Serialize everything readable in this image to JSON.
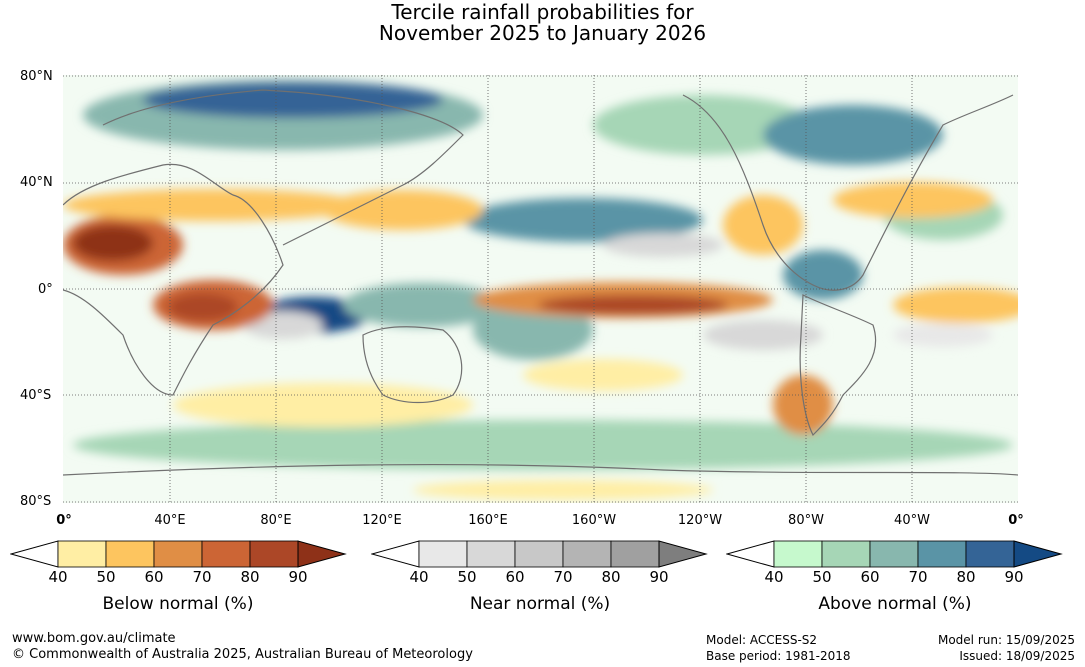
{
  "title": {
    "line1": "Tercile rainfall probabilities for",
    "line2": "November 2025 to January 2026"
  },
  "lat_labels": [
    "80°N",
    "40°N",
    "0°",
    "40°S",
    "80°S"
  ],
  "lon_labels": [
    "0°",
    "40°E",
    "80°E",
    "120°E",
    "160°E",
    "160°W",
    "120°W",
    "80°W",
    "40°W",
    "0°"
  ],
  "legends": [
    {
      "id": "below",
      "label": "Below normal (%)",
      "ticks": [
        "40",
        "50",
        "60",
        "70",
        "80",
        "90"
      ],
      "colors": [
        "#ffeea4",
        "#fdc55f",
        "#e08e45",
        "#cc6535",
        "#ac4727",
        "#8e3118"
      ]
    },
    {
      "id": "near",
      "label": "Near normal (%)",
      "ticks": [
        "40",
        "50",
        "60",
        "70",
        "80",
        "90"
      ],
      "colors": [
        "#e8e8e8",
        "#d8d8d8",
        "#c8c8c8",
        "#b4b4b4",
        "#a0a0a0",
        "#7e7e7e"
      ]
    },
    {
      "id": "above",
      "label": "Above normal (%)",
      "ticks": [
        "40",
        "50",
        "60",
        "70",
        "80",
        "90"
      ],
      "colors": [
        "#c6f9cd",
        "#a6d6b6",
        "#88b7ae",
        "#5a94a6",
        "#346496",
        "#144a84"
      ]
    }
  ],
  "footer": {
    "url": "www.bom.gov.au/climate",
    "copyright": "© Commonwealth of Australia 2025, Australian Bureau of Meteorology",
    "model": "Model: ACCESS-S2",
    "base_period": "Base period: 1981-2018",
    "model_run": "Model run: 15/09/2025",
    "issued": "Issued: 18/09/2025"
  }
}
